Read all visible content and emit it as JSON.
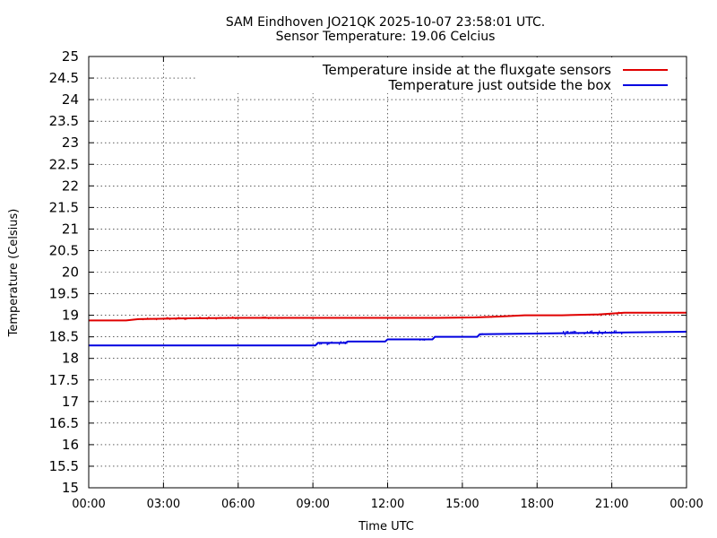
{
  "chart_data": {
    "type": "line",
    "title": "SAM Eindhoven JO21QK 2025-10-07 23:58:01 UTC.",
    "subtitle": "Sensor Temperature: 19.06 Celcius",
    "xlabel": "Time UTC",
    "ylabel": "Temperature (Celsius)",
    "xlim": [
      0,
      24
    ],
    "ylim": [
      15,
      25
    ],
    "x_ticks": [
      {
        "value": 0,
        "label": "00:00"
      },
      {
        "value": 3,
        "label": "03:00"
      },
      {
        "value": 6,
        "label": "06:00"
      },
      {
        "value": 9,
        "label": "09:00"
      },
      {
        "value": 12,
        "label": "12:00"
      },
      {
        "value": 15,
        "label": "15:00"
      },
      {
        "value": 18,
        "label": "18:00"
      },
      {
        "value": 21,
        "label": "21:00"
      },
      {
        "value": 24,
        "label": "00:00"
      }
    ],
    "y_ticks": [
      "15",
      "15.5",
      "16",
      "16.5",
      "17",
      "17.5",
      "18",
      "18.5",
      "19",
      "19.5",
      "20",
      "20.5",
      "21",
      "21.5",
      "22",
      "22.5",
      "23",
      "23.5",
      "24",
      "24.5",
      "25"
    ],
    "grid": true,
    "legend_position": "top-right",
    "series": [
      {
        "name": "Temperature inside at the fluxgate sensors",
        "color": "#e00000",
        "x": [
          0,
          1.5,
          2,
          4,
          6,
          8,
          10,
          12,
          14,
          15.5,
          16.5,
          17.5,
          19,
          20.5,
          21.5,
          24
        ],
        "y": [
          18.88,
          18.88,
          18.91,
          18.93,
          18.94,
          18.94,
          18.94,
          18.94,
          18.94,
          18.95,
          18.97,
          19.0,
          19.0,
          19.02,
          19.06,
          19.06
        ]
      },
      {
        "name": "Temperature just outside the box",
        "color": "#0000e0",
        "x": [
          0,
          9.1,
          9.2,
          10.3,
          10.4,
          11.9,
          12.0,
          13.8,
          13.9,
          15.6,
          15.7,
          24
        ],
        "y": [
          18.3,
          18.3,
          18.36,
          18.36,
          18.39,
          18.39,
          18.44,
          18.44,
          18.5,
          18.5,
          18.56,
          18.62
        ]
      }
    ],
    "noise_segments": [
      {
        "series": 0,
        "x": [
          2.0,
          6.0
        ],
        "amplitude": 0.04
      },
      {
        "series": 0,
        "x": [
          6.5,
          8.0
        ],
        "amplitude": 0.03
      },
      {
        "series": 0,
        "x": [
          15.8,
          17.0
        ],
        "amplitude": 0.03
      },
      {
        "series": 0,
        "x": [
          20.5,
          21.5
        ],
        "amplitude": 0.04
      },
      {
        "series": 1,
        "x": [
          9.1,
          10.4
        ],
        "amplitude": 0.06
      },
      {
        "series": 1,
        "x": [
          13.0,
          14.0
        ],
        "amplitude": 0.03
      },
      {
        "series": 1,
        "x": [
          15.5,
          16.2
        ],
        "amplitude": 0.04
      },
      {
        "series": 1,
        "x": [
          19.0,
          21.5
        ],
        "amplitude": 0.06
      }
    ]
  }
}
